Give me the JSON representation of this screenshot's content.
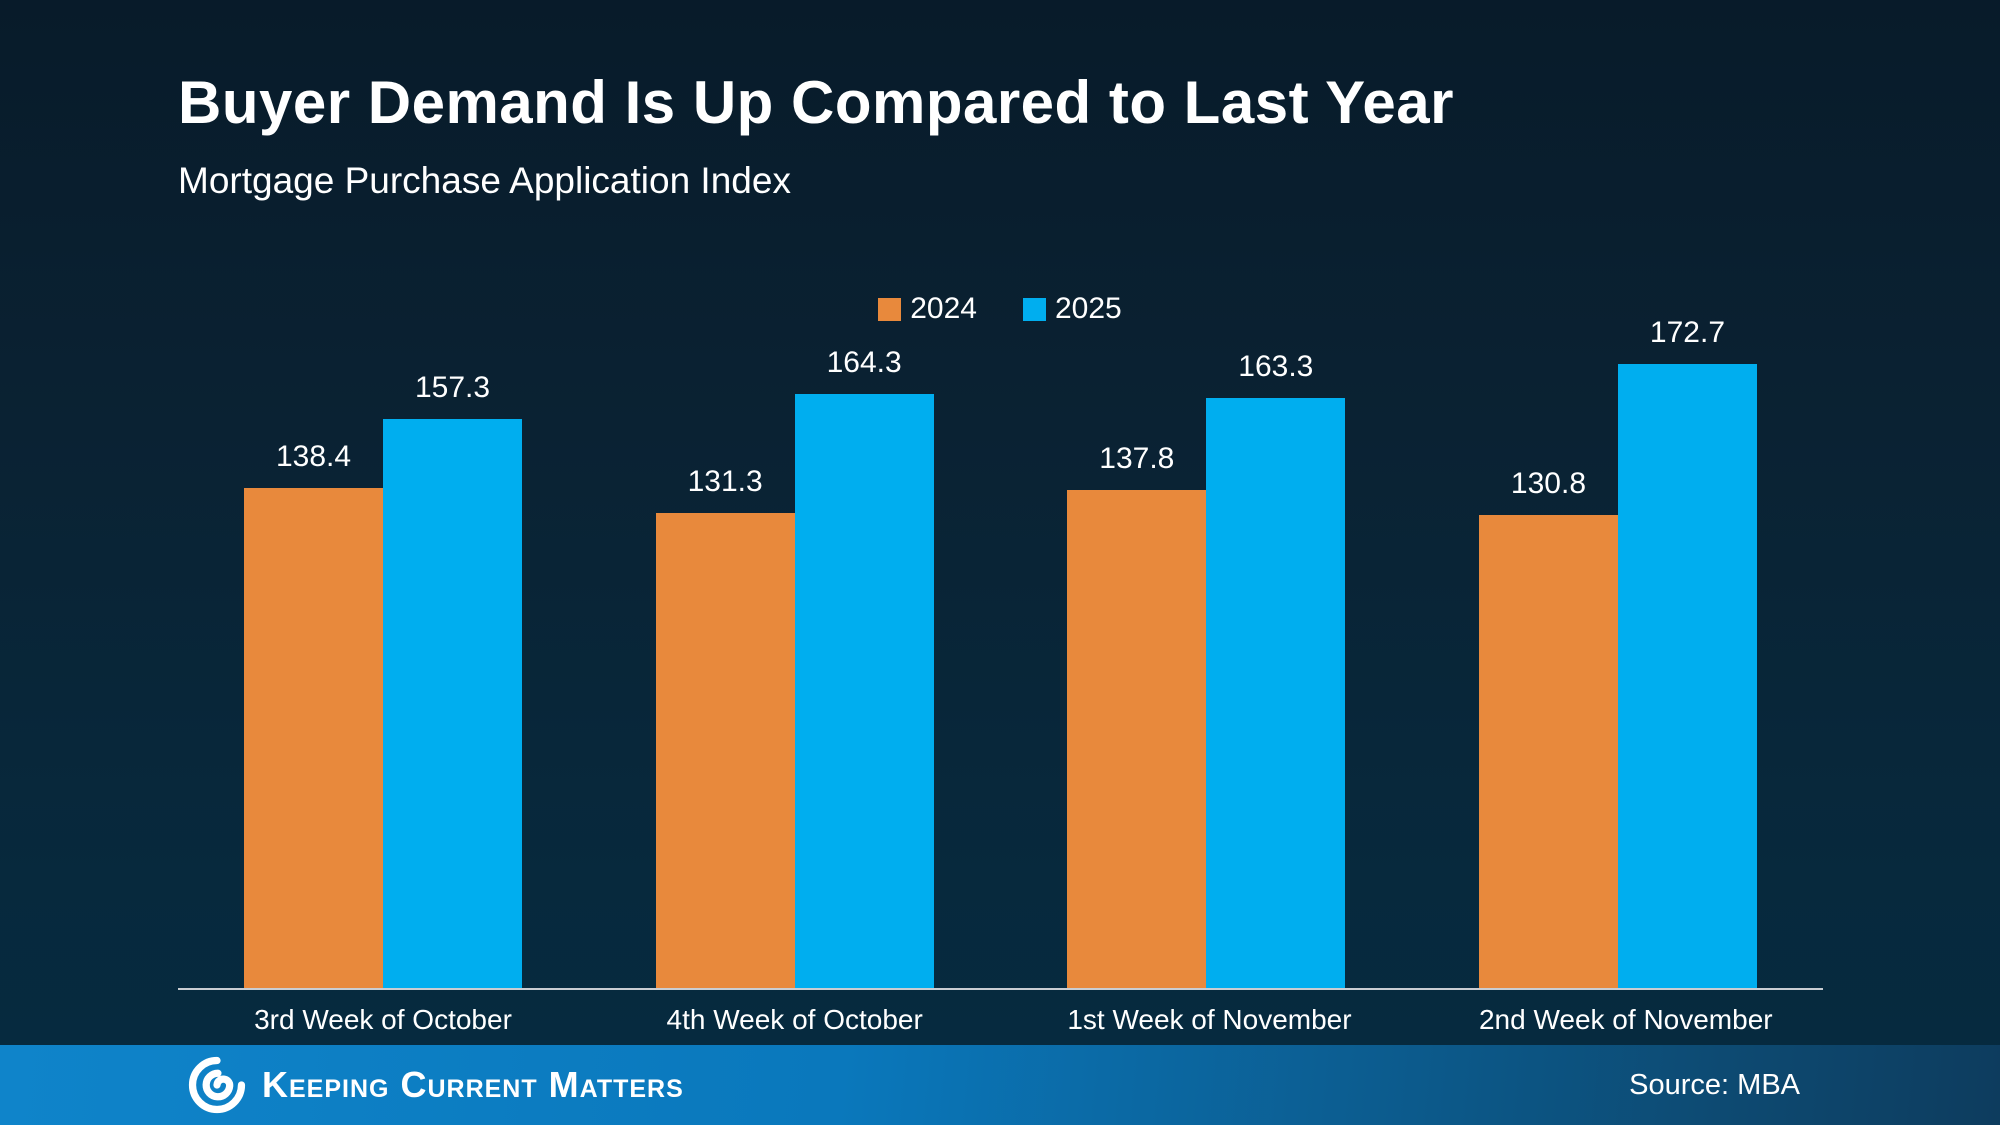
{
  "header": {
    "title": "Buyer Demand Is Up Compared to Last Year",
    "subtitle": "Mortgage Purchase Application Index"
  },
  "chart_data": {
    "type": "bar",
    "categories": [
      "3rd Week of October",
      "4th Week of October",
      "1st Week of November",
      "2nd Week of November"
    ],
    "series": [
      {
        "name": "2024",
        "color": "#E8893C",
        "values": [
          138.4,
          131.3,
          137.8,
          130.8
        ]
      },
      {
        "name": "2025",
        "color": "#00AEEF",
        "values": [
          157.3,
          164.3,
          163.3,
          172.7
        ]
      }
    ],
    "title": "Buyer Demand Is Up Compared to Last Year",
    "subtitle": "Mortgage Purchase Application Index",
    "xlabel": "",
    "ylabel": "",
    "ylim": [
      0,
      177
    ],
    "grid": false,
    "legend_position": "top-center",
    "data_labels": true,
    "axis_line_color": "#C9CDD2"
  },
  "footer": {
    "brand": "Keeping Current Matters",
    "logo_icon": "kcm-swirl-icon",
    "source": "Source: MBA"
  },
  "colors": {
    "background_top": "#081B2A",
    "background_bottom": "#052A40",
    "footer_left": "#0F84CA",
    "footer_right": "#0D3C5E",
    "text": "#FFFFFF"
  }
}
